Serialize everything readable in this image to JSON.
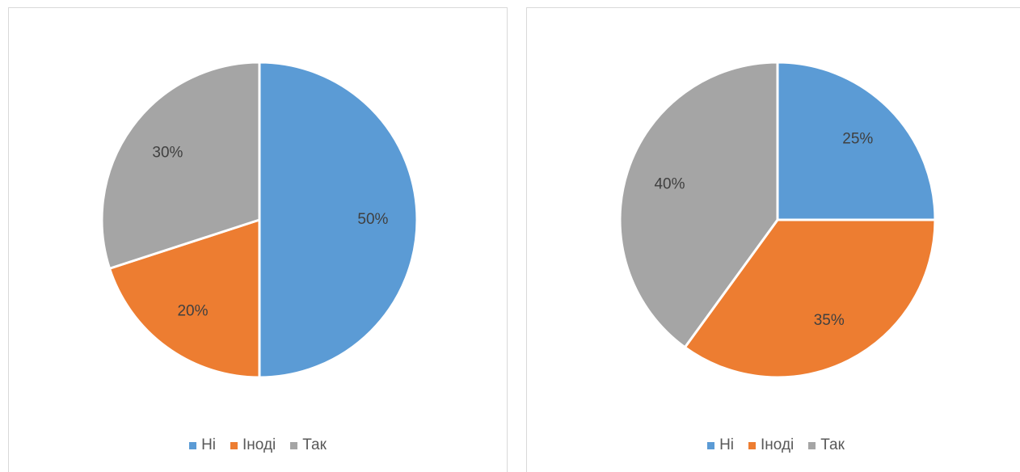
{
  "legend_labels": [
    "Ні",
    "Іноді",
    "Так"
  ],
  "colors": {
    "ni": "#5b9bd5",
    "inodi": "#ed7d31",
    "tak": "#a5a5a5"
  },
  "chart_data": [
    {
      "type": "pie",
      "categories": [
        "Ні",
        "Іноді",
        "Так"
      ],
      "values": [
        50,
        20,
        30
      ],
      "data_labels": [
        "50%",
        "20%",
        "30%"
      ],
      "title": "",
      "legend_position": "bottom"
    },
    {
      "type": "pie",
      "categories": [
        "Ні",
        "Іноді",
        "Так"
      ],
      "values": [
        25,
        35,
        40
      ],
      "data_labels": [
        "25%",
        "35%",
        "40%"
      ],
      "title": "",
      "legend_position": "bottom"
    }
  ]
}
